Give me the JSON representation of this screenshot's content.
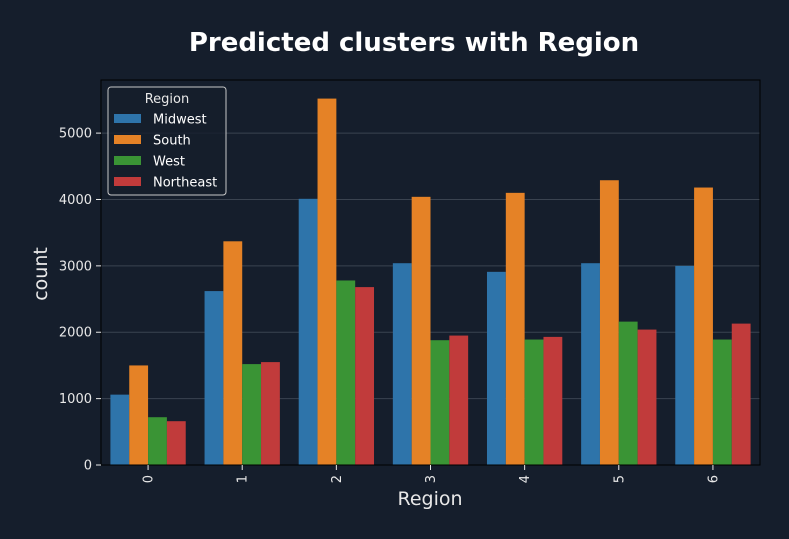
{
  "chart_data": {
    "type": "bar",
    "title": "Predicted clusters with Region",
    "xlabel": "Region",
    "ylabel": "count",
    "categories": [
      "0",
      "1",
      "2",
      "3",
      "4",
      "5",
      "6"
    ],
    "ylim": [
      0,
      5800
    ],
    "yticks": [
      0,
      1000,
      2000,
      3000,
      4000,
      5000
    ],
    "grid": true,
    "legend": {
      "title": "Region",
      "placement": "top-left"
    },
    "series": [
      {
        "name": "Midwest",
        "color": "#2e74aa",
        "values": [
          1060,
          2620,
          4010,
          3040,
          2910,
          3040,
          3000
        ]
      },
      {
        "name": "South",
        "color": "#e58226",
        "values": [
          1500,
          3370,
          5520,
          4040,
          4100,
          4290,
          4180
        ]
      },
      {
        "name": "West",
        "color": "#3a9435",
        "values": [
          720,
          1520,
          2780,
          1880,
          1890,
          2160,
          1890
        ]
      },
      {
        "name": "Northeast",
        "color": "#c13b3b",
        "values": [
          660,
          1550,
          2680,
          1950,
          1930,
          2040,
          2130
        ]
      }
    ]
  },
  "colors": {
    "background": "#151e2c",
    "plot_background": "#151e2c",
    "frame": "#000000",
    "grid": "#3a4350",
    "text": "#e8e8e8"
  }
}
